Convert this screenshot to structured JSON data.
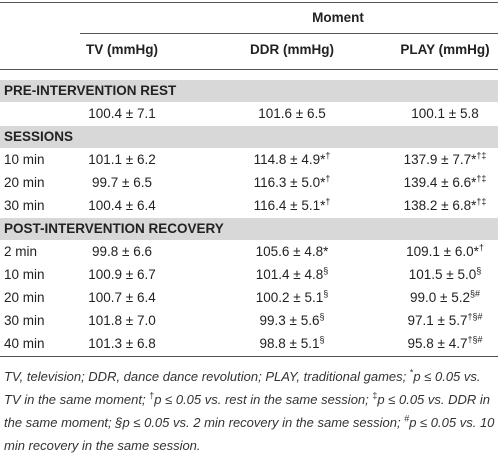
{
  "table": {
    "header": "Moment",
    "columns": [
      "TV (mmHg)",
      "DDR (mmHg)",
      "PLAY (mmHg)"
    ],
    "sections": [
      {
        "title": "PRE-INTERVENTION REST",
        "rows": [
          {
            "cells": [
              {
                "text": "100.4 ± 7.1"
              },
              {
                "text": "101.6 ± 6.5"
              },
              {
                "text": "100.1 ± 5.8"
              }
            ]
          }
        ]
      },
      {
        "title": "SESSIONS",
        "rows": [
          {
            "label": "10 min",
            "cells": [
              {
                "text": "101.1 ± 6.2"
              },
              {
                "text": "114.8 ± 4.9*",
                "sup": "†"
              },
              {
                "text": "137.9 ± 7.7*",
                "sup": "†‡"
              }
            ]
          },
          {
            "label": "20 min",
            "cells": [
              {
                "text": "99.7 ± 6.5"
              },
              {
                "text": "116.3 ± 5.0*",
                "sup": "†"
              },
              {
                "text": "139.4 ± 6.6*",
                "sup": "†‡"
              }
            ]
          },
          {
            "label": "30 min",
            "cells": [
              {
                "text": "100.4 ± 6.4"
              },
              {
                "text": "116.4 ± 5.1*",
                "sup": "†"
              },
              {
                "text": "138.2 ± 6.8*",
                "sup": "†‡"
              }
            ]
          }
        ]
      },
      {
        "title": "POST-INTERVENTION RECOVERY",
        "rows": [
          {
            "label": "2 min",
            "cells": [
              {
                "text": "99.8 ± 6.6"
              },
              {
                "text": "105.6 ± 4.8*"
              },
              {
                "text": "109.1 ± 6.0*",
                "sup": "†"
              }
            ]
          },
          {
            "label": "10 min",
            "cells": [
              {
                "text": "100.9 ± 6.7"
              },
              {
                "text": "101.4 ± 4.8",
                "sup": "§"
              },
              {
                "text": "101.5 ± 5.0",
                "sup": "§"
              }
            ]
          },
          {
            "label": "20 min",
            "cells": [
              {
                "text": "100.7 ± 6.4"
              },
              {
                "text": "100.2 ± 5.1",
                "sup": "§"
              },
              {
                "text": "99.0 ± 5.2",
                "sup": "§#"
              }
            ]
          },
          {
            "label": "30 min",
            "cells": [
              {
                "text": "101.8 ± 7.0"
              },
              {
                "text": "99.3 ± 5.6",
                "sup": "§"
              },
              {
                "text": "97.1 ± 5.7",
                "sup": "†§#"
              }
            ]
          },
          {
            "label": "40 min",
            "cells": [
              {
                "text": "101.3 ± 6.8"
              },
              {
                "text": "98.8 ± 5.1",
                "sup": "§"
              },
              {
                "text": "95.8 ± 4.7",
                "sup": "†§#"
              }
            ]
          }
        ]
      }
    ]
  },
  "footnote": [
    {
      "text": "TV, television; DDR, dance dance revolution; PLAY, traditional games; "
    },
    {
      "sup": "*"
    },
    {
      "text": "p ≤ 0.05 vs. TV in the same moment; "
    },
    {
      "sup": "†"
    },
    {
      "text": "p ≤ 0.05 vs. rest in the same session; "
    },
    {
      "sup": "‡"
    },
    {
      "text": "p ≤ 0.05 vs. DDR in the same moment; §p ≤ 0.05 vs. 2 min recovery in the same session; "
    },
    {
      "sup": "#"
    },
    {
      "text": "p ≤ 0.05 vs. 10 min recovery in the same session."
    }
  ]
}
